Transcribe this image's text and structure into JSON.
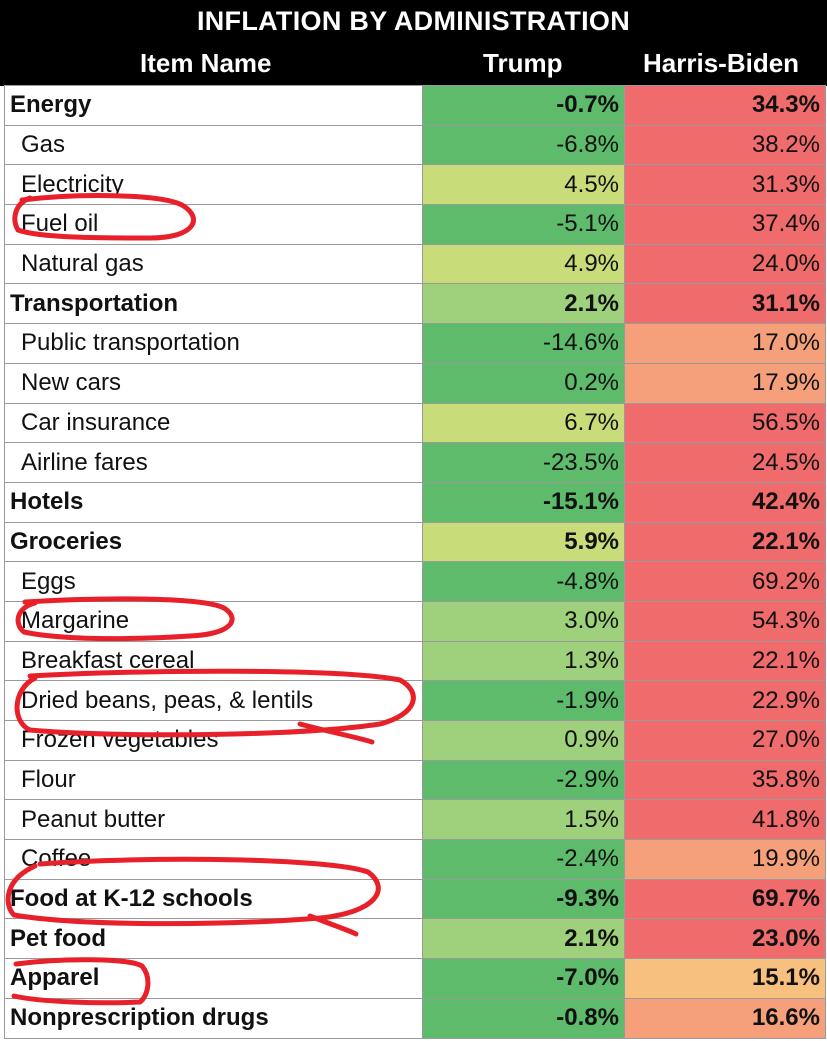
{
  "chart_data": {
    "type": "table",
    "title": "INFLATION BY ADMINISTRATION",
    "columns": [
      "Item Name",
      "Trump",
      "Harris-Biden"
    ],
    "colors": {
      "strong_green": "#5dbb6b",
      "light_green": "#c8dc7a",
      "mid_green": "#9fd17c",
      "strong_red": "#f06b6b",
      "salmon": "#f5a07a",
      "orange": "#f8c07e",
      "marker_red": "#e8202a"
    },
    "rows": [
      {
        "name": "Energy",
        "trump": "-0.7%",
        "hb": "34.3%",
        "bold": true,
        "trump_color": "#5dbb6b",
        "hb_color": "#f06b6b"
      },
      {
        "name": "Gas",
        "trump": "-6.8%",
        "hb": "38.2%",
        "bold": false,
        "trump_color": "#5dbb6b",
        "hb_color": "#f06b6b"
      },
      {
        "name": "Electricity",
        "trump": "4.5%",
        "hb": "31.3%",
        "bold": false,
        "trump_color": "#c8dc7a",
        "hb_color": "#f06b6b"
      },
      {
        "name": "Fuel oil",
        "trump": "-5.1%",
        "hb": "37.4%",
        "bold": false,
        "trump_color": "#5dbb6b",
        "hb_color": "#f06b6b"
      },
      {
        "name": "Natural gas",
        "trump": "4.9%",
        "hb": "24.0%",
        "bold": false,
        "trump_color": "#c8dc7a",
        "hb_color": "#f06b6b"
      },
      {
        "name": "Transportation",
        "trump": "2.1%",
        "hb": "31.1%",
        "bold": true,
        "trump_color": "#9fd17c",
        "hb_color": "#f06b6b"
      },
      {
        "name": "Public transportation",
        "trump": "-14.6%",
        "hb": "17.0%",
        "bold": false,
        "trump_color": "#5dbb6b",
        "hb_color": "#f5a07a"
      },
      {
        "name": "New cars",
        "trump": "0.2%",
        "hb": "17.9%",
        "bold": false,
        "trump_color": "#5dbb6b",
        "hb_color": "#f5a07a"
      },
      {
        "name": "Car insurance",
        "trump": "6.7%",
        "hb": "56.5%",
        "bold": false,
        "trump_color": "#c8dc7a",
        "hb_color": "#f06b6b"
      },
      {
        "name": "Airline fares",
        "trump": "-23.5%",
        "hb": "24.5%",
        "bold": false,
        "trump_color": "#5dbb6b",
        "hb_color": "#f06b6b"
      },
      {
        "name": "Hotels",
        "trump": "-15.1%",
        "hb": "42.4%",
        "bold": true,
        "trump_color": "#5dbb6b",
        "hb_color": "#f06b6b"
      },
      {
        "name": "Groceries",
        "trump": "5.9%",
        "hb": "22.1%",
        "bold": true,
        "trump_color": "#c8dc7a",
        "hb_color": "#f06b6b"
      },
      {
        "name": "Eggs",
        "trump": "-4.8%",
        "hb": "69.2%",
        "bold": false,
        "trump_color": "#5dbb6b",
        "hb_color": "#f06b6b"
      },
      {
        "name": "Margarine",
        "trump": "3.0%",
        "hb": "54.3%",
        "bold": false,
        "trump_color": "#9fd17c",
        "hb_color": "#f06b6b"
      },
      {
        "name": "Breakfast cereal",
        "trump": "1.3%",
        "hb": "22.1%",
        "bold": false,
        "trump_color": "#9fd17c",
        "hb_color": "#f06b6b"
      },
      {
        "name": "Dried beans, peas, & lentils",
        "trump": "-1.9%",
        "hb": "22.9%",
        "bold": false,
        "trump_color": "#5dbb6b",
        "hb_color": "#f06b6b"
      },
      {
        "name": "Frozen vegetables",
        "trump": "0.9%",
        "hb": "27.0%",
        "bold": false,
        "trump_color": "#9fd17c",
        "hb_color": "#f06b6b"
      },
      {
        "name": "Flour",
        "trump": "-2.9%",
        "hb": "35.8%",
        "bold": false,
        "trump_color": "#5dbb6b",
        "hb_color": "#f06b6b"
      },
      {
        "name": "Peanut butter",
        "trump": "1.5%",
        "hb": "41.8%",
        "bold": false,
        "trump_color": "#9fd17c",
        "hb_color": "#f06b6b"
      },
      {
        "name": "Coffee",
        "trump": "-2.4%",
        "hb": "19.9%",
        "bold": false,
        "trump_color": "#5dbb6b",
        "hb_color": "#f5a07a"
      },
      {
        "name": "Food at K-12 schools",
        "trump": "-9.3%",
        "hb": "69.7%",
        "bold": true,
        "trump_color": "#5dbb6b",
        "hb_color": "#f06b6b"
      },
      {
        "name": "Pet food",
        "trump": "2.1%",
        "hb": "23.0%",
        "bold": true,
        "trump_color": "#9fd17c",
        "hb_color": "#f06b6b"
      },
      {
        "name": "Apparel",
        "trump": "-7.0%",
        "hb": "15.1%",
        "bold": true,
        "trump_color": "#5dbb6b",
        "hb_color": "#f8c07e"
      },
      {
        "name": "Nonprescription drugs",
        "trump": "-0.8%",
        "hb": "16.6%",
        "bold": true,
        "trump_color": "#5dbb6b",
        "hb_color": "#f5a07a"
      }
    ],
    "circled_items": [
      "Fuel oil",
      "Margarine",
      "Dried beans, peas, & lentils",
      "Food at K-12 schools",
      "Apparel"
    ]
  }
}
